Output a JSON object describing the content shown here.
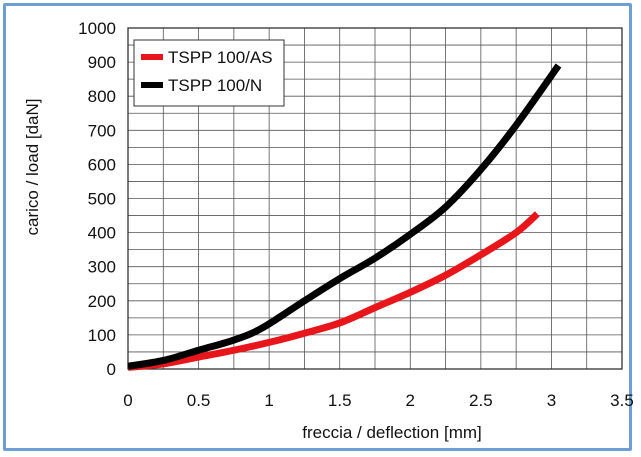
{
  "chart_data": {
    "type": "line",
    "xlabel": "freccia / deflection [mm]",
    "ylabel": "carico / load [daN]",
    "xlim": [
      0,
      3.5
    ],
    "ylim": [
      0,
      1000
    ],
    "xticks": [
      "0",
      "0.5",
      "1",
      "1.5",
      "2",
      "2.5",
      "3",
      "3.5"
    ],
    "yticks": [
      "0",
      "100",
      "200",
      "300",
      "400",
      "500",
      "600",
      "700",
      "800",
      "900",
      "1000"
    ],
    "grid": true,
    "legend_position": "top-left",
    "series": [
      {
        "name": "TSPP 100/AS",
        "color": "#e8161b",
        "points": [
          [
            0,
            5
          ],
          [
            0.25,
            15
          ],
          [
            0.5,
            35
          ],
          [
            0.75,
            55
          ],
          [
            1.0,
            78
          ],
          [
            1.25,
            105
          ],
          [
            1.5,
            135
          ],
          [
            1.75,
            180
          ],
          [
            2.0,
            225
          ],
          [
            2.25,
            275
          ],
          [
            2.5,
            335
          ],
          [
            2.75,
            400
          ],
          [
            2.9,
            455
          ]
        ]
      },
      {
        "name": "TSPP 100/N",
        "color": "#000000",
        "points": [
          [
            0,
            8
          ],
          [
            0.25,
            25
          ],
          [
            0.5,
            55
          ],
          [
            0.75,
            85
          ],
          [
            0.95,
            120
          ],
          [
            1.25,
            200
          ],
          [
            1.5,
            265
          ],
          [
            1.75,
            325
          ],
          [
            2.0,
            395
          ],
          [
            2.25,
            475
          ],
          [
            2.5,
            585
          ],
          [
            2.75,
            715
          ],
          [
            3.05,
            890
          ]
        ]
      }
    ]
  }
}
